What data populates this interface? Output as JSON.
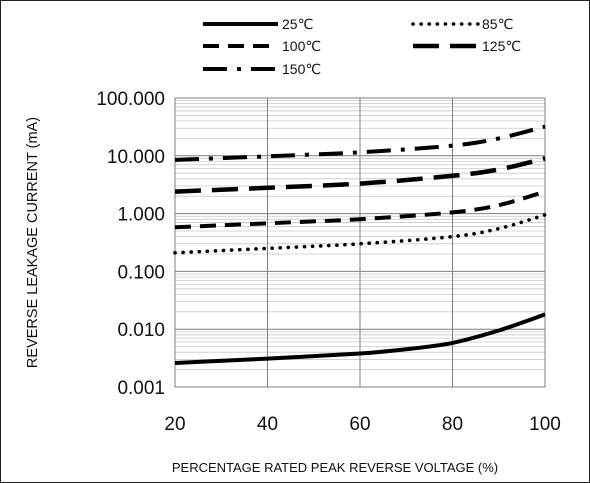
{
  "chart_data": {
    "type": "line",
    "title": "",
    "xlabel": "PERCENTAGE RATED PEAK REVERSE VOLTAGE (%)",
    "ylabel": "REVERSE LEAKAGE CURRENT (mA)",
    "x_scale": "linear",
    "y_scale": "log",
    "xlim": [
      20,
      100
    ],
    "ylim": [
      0.001,
      100
    ],
    "x_ticks": [
      20,
      40,
      60,
      80,
      100
    ],
    "x_tick_labels": [
      "20",
      "40",
      "60",
      "80",
      "100"
    ],
    "y_ticks": [
      0.001,
      0.01,
      0.1,
      1,
      10,
      100
    ],
    "y_tick_labels": [
      "0.001",
      "0.010",
      "0.100",
      "1.000",
      "10.000",
      "100.000"
    ],
    "grid": true,
    "legend_position": "top",
    "series": [
      {
        "name": "25℃",
        "style": "solid",
        "x": [
          20,
          40,
          60,
          70,
          80,
          90,
          100
        ],
        "y": [
          0.0026,
          0.0031,
          0.0038,
          0.0045,
          0.0058,
          0.0095,
          0.018
        ]
      },
      {
        "name": "85℃",
        "style": "dotted",
        "x": [
          20,
          40,
          60,
          80,
          90,
          100
        ],
        "y": [
          0.21,
          0.25,
          0.3,
          0.4,
          0.55,
          0.95
        ]
      },
      {
        "name": "100℃",
        "style": "dashed",
        "x": [
          20,
          40,
          60,
          80,
          90,
          100
        ],
        "y": [
          0.58,
          0.68,
          0.8,
          1.05,
          1.4,
          2.4
        ]
      },
      {
        "name": "125℃",
        "style": "long-dash",
        "x": [
          20,
          40,
          60,
          80,
          90,
          100
        ],
        "y": [
          2.4,
          2.8,
          3.3,
          4.5,
          5.8,
          9.0
        ]
      },
      {
        "name": "150℃",
        "style": "dash-dot",
        "x": [
          20,
          40,
          60,
          80,
          90,
          100
        ],
        "y": [
          8.5,
          9.8,
          11.5,
          15.0,
          20.0,
          32.0
        ]
      }
    ]
  }
}
